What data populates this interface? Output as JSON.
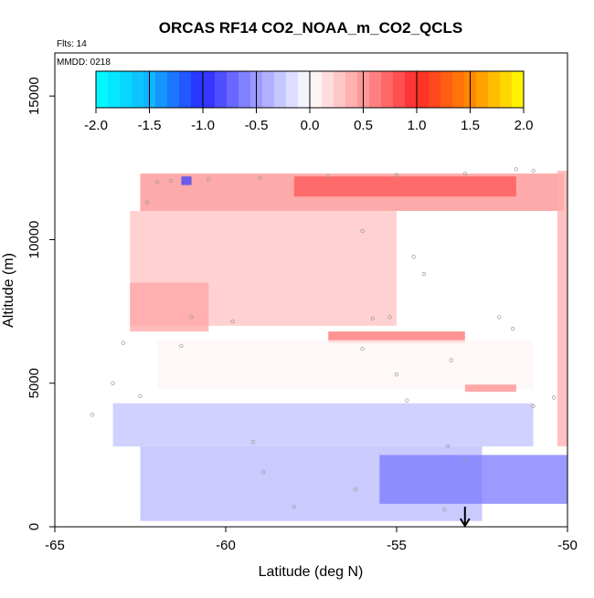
{
  "chart_data": {
    "type": "heatmap",
    "title": "ORCAS RF14 CO2_NOAA_m_CO2_QCLS",
    "flights_label": "Flts: 14",
    "date_label": "MMDD: 0218",
    "xlabel": "Latitude (deg N)",
    "ylabel": "Altitude (m)",
    "xlim": [
      -65,
      -50
    ],
    "ylim": [
      0,
      16500
    ],
    "x_ticks": [
      -65,
      -60,
      -55,
      -50
    ],
    "x_tick_labels": [
      "-65",
      "-60",
      "-55",
      "-50"
    ],
    "y_ticks": [
      0,
      5000,
      10000,
      15000
    ],
    "y_tick_labels": [
      "0",
      "5000",
      "10000",
      "15000"
    ],
    "colorbar": {
      "range": [
        -2.0,
        2.0
      ],
      "ticks": [
        -2.0,
        -1.5,
        -1.0,
        -0.5,
        0.0,
        0.5,
        1.0,
        1.5,
        2.0
      ],
      "tick_labels": [
        "-2.0",
        "-1.5",
        "-1.0",
        "-0.5",
        "0.0",
        "0.5",
        "1.0",
        "1.5",
        "2.0"
      ],
      "stops": [
        {
          "value": -2.0,
          "color": "#00ffff"
        },
        {
          "value": -1.5,
          "color": "#0fb5ff"
        },
        {
          "value": -1.0,
          "color": "#2a2aff"
        },
        {
          "value": -0.5,
          "color": "#9a9aff"
        },
        {
          "value": 0.0,
          "color": "#ffffff"
        },
        {
          "value": 0.5,
          "color": "#ff9999"
        },
        {
          "value": 1.0,
          "color": "#ff2a2a"
        },
        {
          "value": 1.5,
          "color": "#ff8800"
        },
        {
          "value": 2.0,
          "color": "#ffff00"
        }
      ]
    },
    "regions": [
      {
        "name": "upper-positive-band",
        "lat": [
          -62.5,
          -50.1
        ],
        "alt": [
          11000,
          12300
        ],
        "value": 0.55
      },
      {
        "name": "upper-strong-band",
        "lat": [
          -58,
          -51.5
        ],
        "alt": [
          11500,
          12200
        ],
        "value": 0.8
      },
      {
        "name": "mid-positive-wedge",
        "lat": [
          -62.8,
          -55
        ],
        "alt": [
          7000,
          11000
        ],
        "value": 0.3
      },
      {
        "name": "west-positive-core",
        "lat": [
          -62.8,
          -60.5
        ],
        "alt": [
          6800,
          8500
        ],
        "value": 0.45
      },
      {
        "name": "mid-red-streak",
        "lat": [
          -57,
          -53
        ],
        "alt": [
          6400,
          6800
        ],
        "value": 0.7
      },
      {
        "name": "east-column-positive",
        "lat": [
          -50.3,
          -50.0
        ],
        "alt": [
          2800,
          12400
        ],
        "value": 0.4
      },
      {
        "name": "mid-near-zero",
        "lat": [
          -62,
          -51
        ],
        "alt": [
          4800,
          6500
        ],
        "value": 0.05
      },
      {
        "name": "small-red-patch",
        "lat": [
          -53.0,
          -51.5
        ],
        "alt": [
          4700,
          4950
        ],
        "value": 0.55
      },
      {
        "name": "lower-blue-band",
        "lat": [
          -63.3,
          -51.0
        ],
        "alt": [
          2800,
          4300
        ],
        "value": -0.3
      },
      {
        "name": "bottom-blue-fan",
        "lat": [
          -62.5,
          -52.5
        ],
        "alt": [
          200,
          2800
        ],
        "value": -0.35
      },
      {
        "name": "east-low-blue",
        "lat": [
          -55.5,
          -50.0
        ],
        "alt": [
          800,
          2500
        ],
        "value": -0.65
      },
      {
        "name": "tiny-blue-cell",
        "lat": [
          -61.3,
          -61.0
        ],
        "alt": [
          11900,
          12200
        ],
        "value": -0.9
      }
    ],
    "annotation": {
      "type": "arrow-down",
      "lat": -53.0,
      "alt_top": 700,
      "alt_bottom": 0
    }
  }
}
